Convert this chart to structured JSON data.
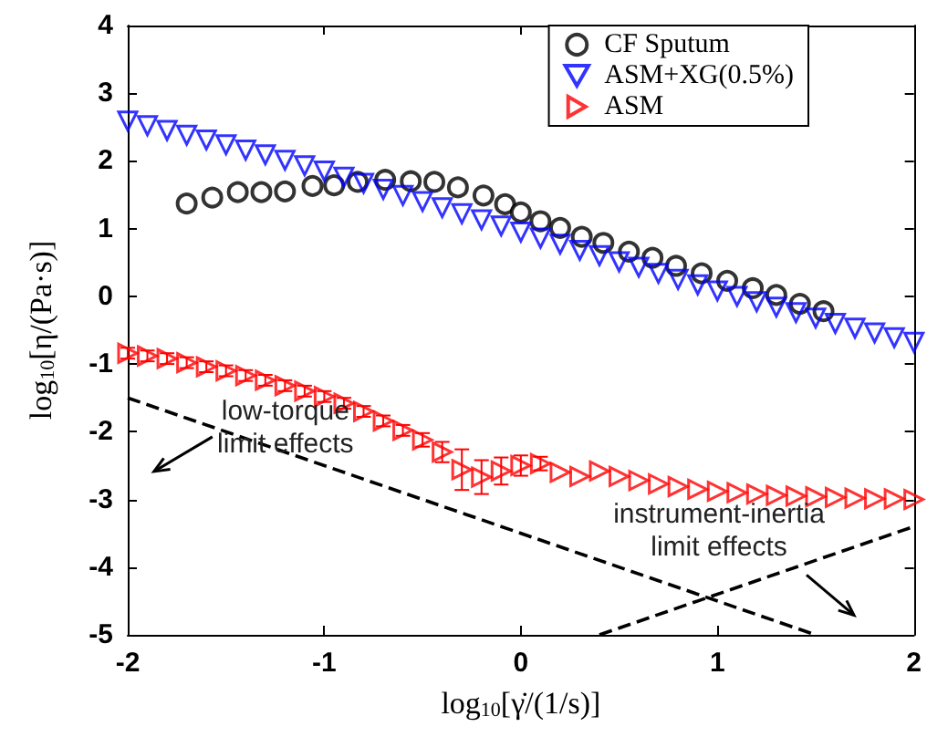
{
  "chart_data": {
    "type": "scatter",
    "xlabel": "log$_{10}$[γ̇/(1/s)]",
    "ylabel": "log$_{10}$[η/(Pa·s)]",
    "xlim": [
      -2,
      2
    ],
    "xticks": [
      -2,
      -1,
      0,
      1,
      2
    ],
    "ylim": [
      -5,
      4
    ],
    "yticks": [
      -5,
      -4,
      -3,
      -2,
      -1,
      0,
      1,
      2,
      3,
      4
    ],
    "grid": false,
    "legend": "top right",
    "annotations": [
      "low-torque\nlimit effects",
      "instrument-inertia\nlimit effects"
    ],
    "series": [
      {
        "name": "CF Sputum",
        "color": "#000000",
        "marker": "circle",
        "x": [
          -1.7,
          -1.57,
          -1.44,
          -1.32,
          -1.2,
          -1.06,
          -0.95,
          -0.83,
          -0.69,
          -0.56,
          -0.44,
          -0.32,
          -0.19,
          -0.08,
          0,
          0.1,
          0.2,
          0.31,
          0.42,
          0.55,
          0.67,
          0.79,
          0.92,
          1.05,
          1.18,
          1.3,
          1.42,
          1.54
        ],
        "values": [
          1.37,
          1.46,
          1.54,
          1.54,
          1.55,
          1.63,
          1.64,
          1.69,
          1.72,
          1.7,
          1.69,
          1.61,
          1.49,
          1.36,
          1.24,
          1.11,
          1.01,
          0.88,
          0.79,
          0.66,
          0.57,
          0.45,
          0.34,
          0.23,
          0.12,
          0.02,
          -0.11,
          -0.22
        ]
      },
      {
        "name": "ASM+XG(0.5%)",
        "color": "#0000ff",
        "marker": "triangle",
        "x": [
          -2,
          -1.9,
          -1.8,
          -1.7,
          -1.6,
          -1.5,
          -1.4,
          -1.3,
          -1.2,
          -1.1,
          -1,
          -0.9,
          -0.8,
          -0.7,
          -0.6,
          -0.5,
          -0.4,
          -0.3,
          -0.2,
          -0.1,
          0,
          0.1,
          0.2,
          0.3,
          0.4,
          0.5,
          0.6,
          0.7,
          0.8,
          0.9,
          1,
          1.1,
          1.2,
          1.3,
          1.4,
          1.5,
          1.6,
          1.7,
          1.8,
          1.9,
          2
        ],
        "values": [
          2.59,
          2.52,
          2.45,
          2.38,
          2.31,
          2.24,
          2.16,
          2.09,
          2.01,
          1.93,
          1.85,
          1.76,
          1.67,
          1.58,
          1.49,
          1.4,
          1.31,
          1.22,
          1.13,
          1.04,
          0.95,
          0.86,
          0.77,
          0.68,
          0.6,
          0.51,
          0.43,
          0.34,
          0.25,
          0.17,
          0.08,
          0,
          -0.08,
          -0.16,
          -0.24,
          -0.32,
          -0.4,
          -0.47,
          -0.54,
          -0.61,
          -0.68
        ]
      },
      {
        "name": "ASM",
        "color": "#ff0000",
        "marker": "triangle",
        "x": [
          -2,
          -1.9,
          -1.8,
          -1.7,
          -1.6,
          -1.5,
          -1.4,
          -1.3,
          -1.2,
          -1.1,
          -1,
          -0.9,
          -0.8,
          -0.7,
          -0.6,
          -0.5,
          -0.4,
          -0.3,
          -0.2,
          -0.1,
          0,
          0.1,
          0.2,
          0.3,
          0.4,
          0.5,
          0.6,
          0.7,
          0.8,
          0.9,
          1,
          1.1,
          1.2,
          1.3,
          1.4,
          1.5,
          1.6,
          1.7,
          1.8,
          1.9,
          2
        ],
        "values": [
          -0.84,
          -0.88,
          -0.92,
          -0.98,
          -1.04,
          -1.1,
          -1.17,
          -1.24,
          -1.32,
          -1.4,
          -1.48,
          -1.58,
          -1.7,
          -1.84,
          -1.98,
          -2.12,
          -2.3,
          -2.56,
          -2.67,
          -2.58,
          -2.5,
          -2.47,
          -2.6,
          -2.66,
          -2.58,
          -2.66,
          -2.72,
          -2.77,
          -2.81,
          -2.85,
          -2.88,
          -2.9,
          -2.92,
          -2.94,
          -2.95,
          -2.96,
          -2.97,
          -2.98,
          -2.99,
          -2.99,
          -3
        ],
        "errors": [
          0.08,
          0.08,
          0.08,
          0.08,
          0.08,
          0.08,
          0.08,
          0.08,
          0.08,
          0.08,
          0.08,
          0.08,
          0.08,
          0.08,
          0.08,
          0.1,
          0.15,
          0.3,
          0.25,
          0.2,
          0.15,
          0.1,
          null,
          null,
          null,
          null,
          null,
          null,
          null,
          null,
          null,
          null,
          null,
          null,
          null,
          null,
          null,
          null,
          null,
          null,
          null
        ]
      },
      {
        "type": "line",
        "color": "#000000",
        "marker": "none",
        "line_style": "dashed",
        "x": [
          -2,
          1.5
        ],
        "values": [
          -1.5,
          -5
        ]
      },
      {
        "type": "line",
        "color": "#000000",
        "marker": "none",
        "line_style": "dashed",
        "x": [
          0.4,
          2
        ],
        "values": [
          -5,
          -3.4
        ]
      }
    ]
  }
}
